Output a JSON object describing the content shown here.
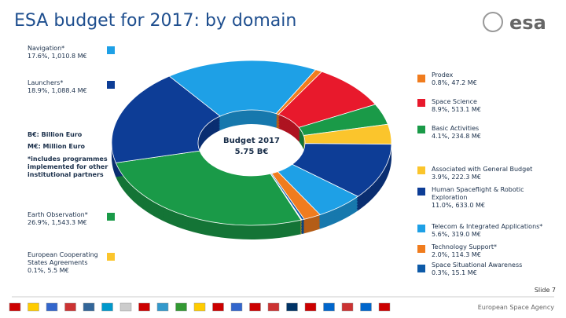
{
  "chart_data": {
    "type": "pie",
    "title": "ESA budget for 2017: by domain",
    "center_title": "Budget 2017",
    "center_value": "5.75 B€",
    "notes": [
      "B€: Billion Euro",
      "M€: Million Euro",
      "*includes programmes implemented for other institutional partners"
    ],
    "categories": [
      "Navigation*",
      "Prodex",
      "Space Science",
      "Basic Activities",
      "Associated with General Budget",
      "Human Spaceflight & Robotic Exploration",
      "Telecom & Integrated Applications*",
      "Technology Support*",
      "Space Situational Awareness",
      "European Cooperating States Agreements",
      "Earth Observation*",
      "Launchers*"
    ],
    "values": [
      17.6,
      0.8,
      8.9,
      4.1,
      3.9,
      11.0,
      5.6,
      2.0,
      0.3,
      0.1,
      26.9,
      18.9
    ],
    "value_labels": [
      "17.6%, 1,010.8 M€",
      "0.8%, 47.2 M€",
      "8.9%, 513.1 M€",
      "4.1%, 234.8 M€",
      "3.9%, 222.3 M€",
      "11.0%, 633.0 M€",
      "5.6%, 319.0 M€",
      "2.0%, 114.3 M€",
      "0.3%, 15.1 M€",
      "0.1%, 5.5 M€",
      "26.9%, 1,543.3 M€",
      "18.9%, 1,088.4 M€"
    ],
    "colors": [
      "#1ea0e6",
      "#f07c1e",
      "#e8192c",
      "#1a9a48",
      "#fbc52c",
      "#0d3d96",
      "#1ea0e6",
      "#f07c1e",
      "#0d5aa8",
      "#fbc52c",
      "#1a9a48",
      "#0d3d96"
    ]
  },
  "footer": {
    "slide": "Slide 7",
    "agency": "European Space Agency",
    "logo": "esa"
  }
}
